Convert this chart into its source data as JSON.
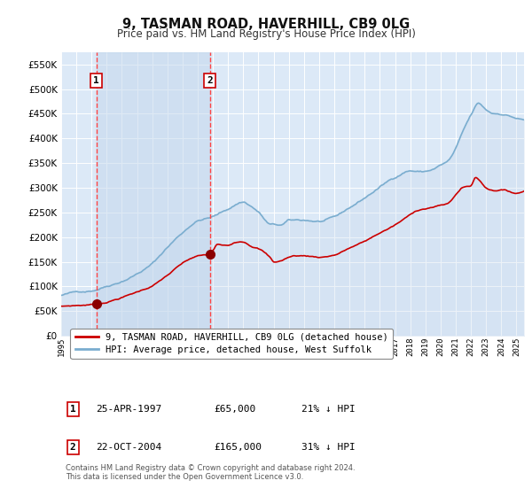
{
  "title": "9, TASMAN ROAD, HAVERHILL, CB9 0LG",
  "subtitle": "Price paid vs. HM Land Registry's House Price Index (HPI)",
  "title_fontsize": 10.5,
  "subtitle_fontsize": 8.5,
  "background_color": "#ffffff",
  "plot_bg_color": "#dce9f7",
  "grid_color": "#ffffff",
  "ylim": [
    0,
    575000
  ],
  "yticks": [
    0,
    50000,
    100000,
    150000,
    200000,
    250000,
    300000,
    350000,
    400000,
    450000,
    500000,
    550000
  ],
  "sale1_date": 1997.32,
  "sale1_price": 65000,
  "sale2_date": 2004.81,
  "sale2_price": 165000,
  "sale1_label": "1",
  "sale2_label": "2",
  "red_line_color": "#cc0000",
  "blue_line_color": "#7aadcf",
  "shade_color": "#c5d8ed",
  "vline_color": "#ff4444",
  "marker_color": "#8b0000",
  "legend_red_label": "9, TASMAN ROAD, HAVERHILL, CB9 0LG (detached house)",
  "legend_blue_label": "HPI: Average price, detached house, West Suffolk",
  "table_rows": [
    {
      "num": "1",
      "date": "25-APR-1997",
      "price": "£65,000",
      "hpi": "21% ↓ HPI"
    },
    {
      "num": "2",
      "date": "22-OCT-2004",
      "price": "£165,000",
      "hpi": "31% ↓ HPI"
    }
  ],
  "footer": "Contains HM Land Registry data © Crown copyright and database right 2024.\nThis data is licensed under the Open Government Licence v3.0.",
  "xmin": 1995.0,
  "xmax": 2025.5
}
